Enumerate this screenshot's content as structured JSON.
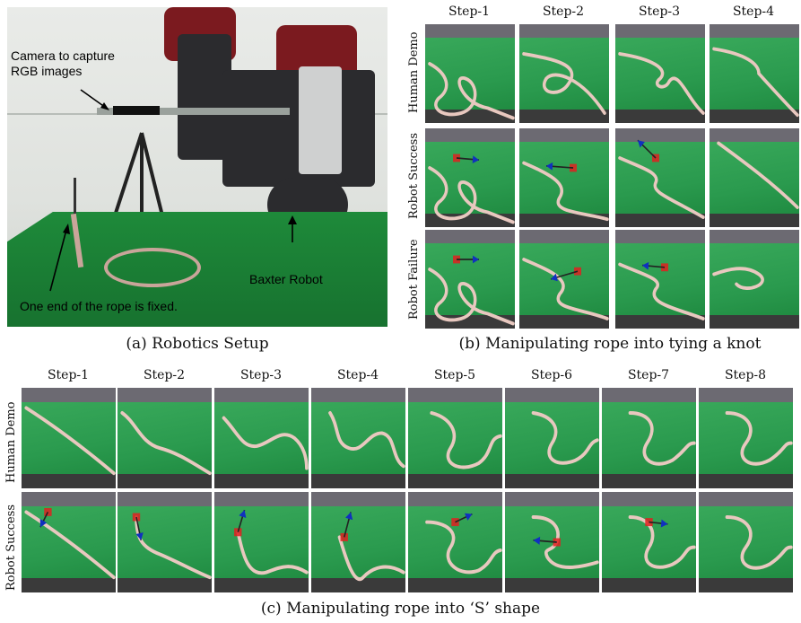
{
  "panel_a": {
    "annotation_camera": "Camera to capture\nRGB images",
    "annotation_robot": "Baxter Robot",
    "annotation_rope": "One end of the rope is fixed.",
    "caption": "(a) Robotics Setup"
  },
  "panel_b": {
    "steps": [
      "Step-1",
      "Step-2",
      "Step-3",
      "Step-4"
    ],
    "rows": [
      "Human Demo",
      "Robot Success",
      "Robot Failure"
    ],
    "caption": "(b) Manipulating rope into tying a knot"
  },
  "panel_c": {
    "steps": [
      "Step-1",
      "Step-2",
      "Step-3",
      "Step-4",
      "Step-5",
      "Step-6",
      "Step-7",
      "Step-8"
    ],
    "rows": [
      "Human Demo",
      "Robot Success"
    ],
    "caption": "(c) Manipulating rope into ‘S’ shape"
  },
  "colors": {
    "table_green": "#2a9a4e",
    "rope": "#e8c8bf",
    "marker": "#e02020",
    "arrow": "#1030c0"
  }
}
